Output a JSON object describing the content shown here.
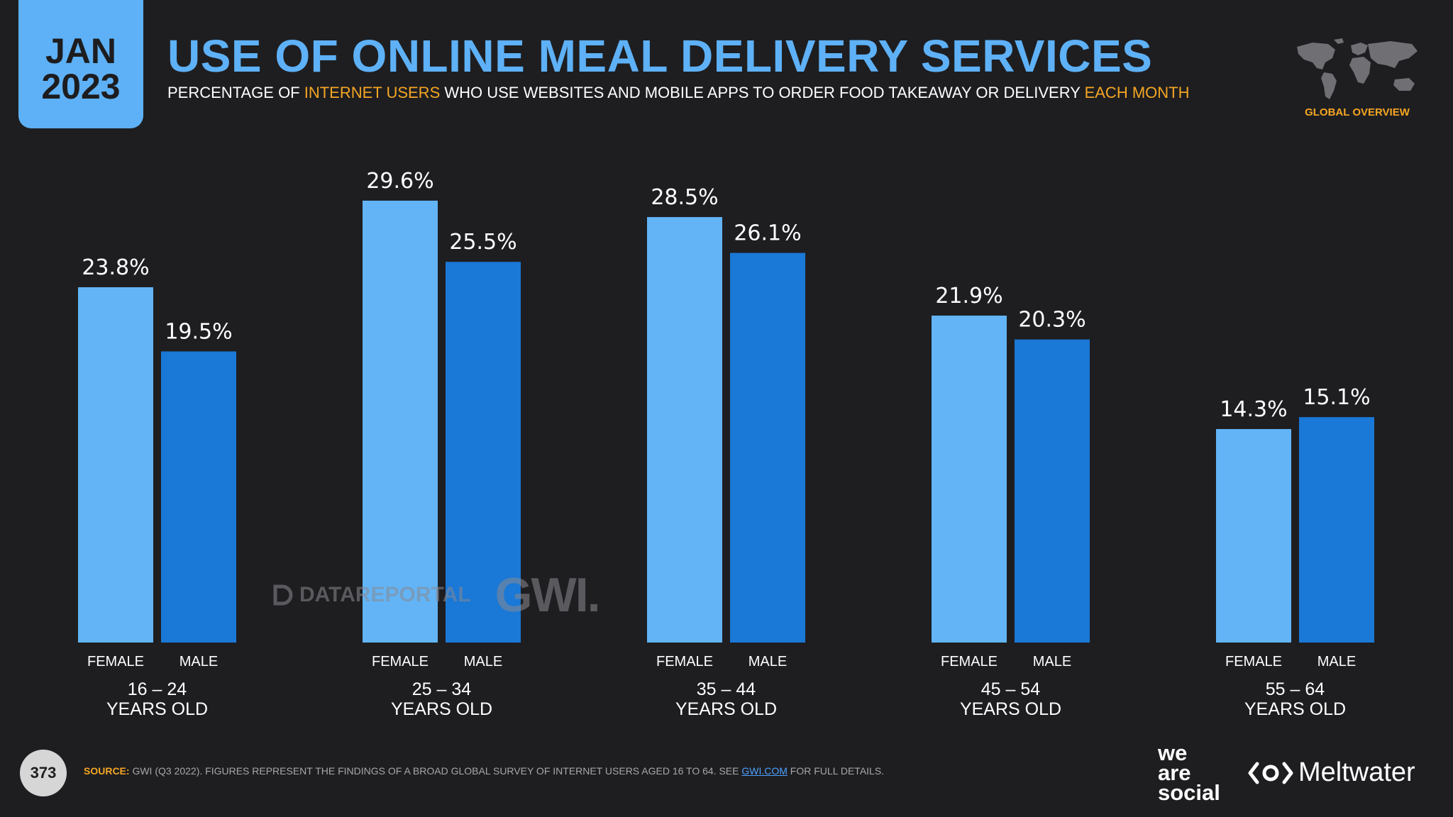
{
  "header": {
    "month": "JAN",
    "year": "2023",
    "title": "USE OF ONLINE MEAL DELIVERY SERVICES",
    "subtitle_parts": [
      "PERCENTAGE OF ",
      "INTERNET USERS",
      " WHO USE WEBSITES AND MOBILE APPS TO ORDER FOOD TAKEAWAY OR DELIVERY ",
      "EACH MONTH"
    ],
    "region_label": "GLOBAL OVERVIEW"
  },
  "watermark": {
    "datareportal": "DATAREPORTAL",
    "gwi": "GWI."
  },
  "footer": {
    "page_number": "373",
    "source_label": "SOURCE:",
    "source_text": " GWI (Q3 2022). FIGURES REPRESENT THE FINDINGS OF A BROAD GLOBAL SURVEY OF INTERNET USERS AGED 16 TO 64. SEE ",
    "source_link": "GWI.COM",
    "source_end": " FOR FULL DETAILS.",
    "brand1": [
      "we",
      "are",
      "social"
    ],
    "brand2": "Meltwater"
  },
  "colors": {
    "female": "#62b4f6",
    "male": "#1a78d6",
    "accent": "#f5a623",
    "title": "#5eb1f6"
  },
  "chart_data": {
    "type": "bar",
    "title": "USE OF ONLINE MEAL DELIVERY SERVICES",
    "categories": [
      "16 – 24",
      "25 – 34",
      "35 – 44",
      "45 – 54",
      "55 – 64"
    ],
    "category_suffix": "YEARS OLD",
    "series": [
      {
        "name": "FEMALE",
        "values": [
          23.8,
          29.6,
          28.5,
          21.9,
          14.3
        ]
      },
      {
        "name": "MALE",
        "values": [
          19.5,
          25.5,
          26.1,
          20.3,
          15.1
        ]
      }
    ],
    "value_format": "%",
    "ylim": [
      0,
      30
    ],
    "grid": false
  }
}
